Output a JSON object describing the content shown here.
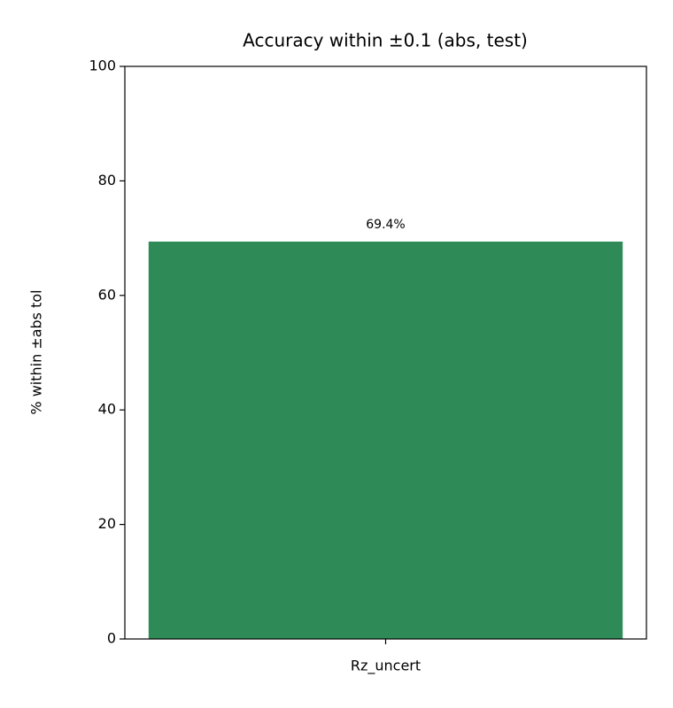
{
  "chart_data": {
    "type": "bar",
    "title": "Accuracy within ±0.1 (abs, test)",
    "y_label": "% within ±abs tol",
    "categories": [
      "Rz_uncert"
    ],
    "values": [
      69.4
    ],
    "value_labels": [
      "69.4%"
    ],
    "color": "#2e8b57",
    "ylim": [
      0,
      100
    ],
    "yticks": [
      0,
      20,
      40,
      60,
      80,
      100
    ],
    "grid": false
  }
}
